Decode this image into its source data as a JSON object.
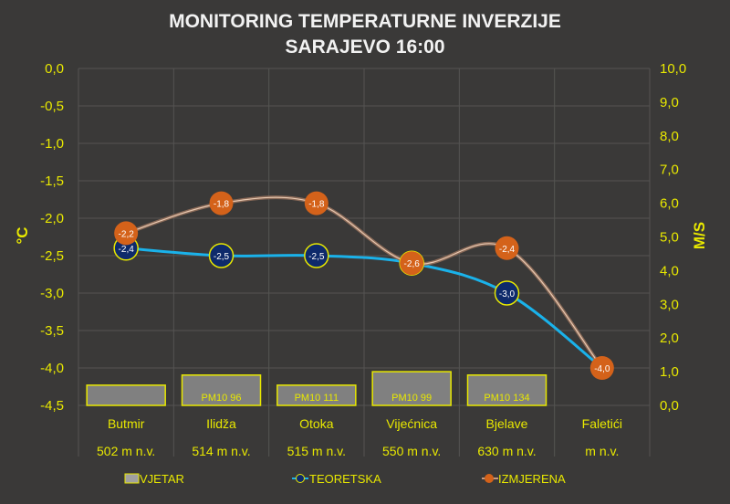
{
  "chart_data": {
    "type": "line+bar",
    "title": "MONITORING TEMPERATURNE INVERZIJE",
    "subtitle": "SARAJEVO 16:00",
    "categories": [
      "Butmir",
      "Ilidža",
      "Otoka",
      "Vijećnica",
      "Bjelave",
      "Faletići"
    ],
    "category_sublabels": [
      "502 m n.v.",
      "514 m n.v.",
      "515 m n.v.",
      "550 m n.v.",
      "630 m n.v.",
      "m n.v."
    ],
    "y_left": {
      "label": "°C",
      "range": [
        -4.5,
        0.0
      ],
      "ticks": [
        "0,0",
        "-0,5",
        "-1,0",
        "-1,5",
        "-2,0",
        "-2,5",
        "-3,0",
        "-3,5",
        "-4,0",
        "-4,5"
      ]
    },
    "y_right": {
      "label": "M/S",
      "range": [
        0.0,
        10.0
      ],
      "ticks": [
        "10,0",
        "9,0",
        "8,0",
        "7,0",
        "6,0",
        "5,0",
        "4,0",
        "3,0",
        "2,0",
        "1,0",
        "0,0"
      ]
    },
    "grid": true,
    "legend_position": "bottom",
    "series": [
      {
        "name": "VJETAR",
        "type": "bar",
        "axis": "right",
        "values": [
          0.6,
          0.9,
          0.6,
          1.0,
          0.9,
          null
        ],
        "labels": [
          "",
          "PM10 96",
          "PM10 111",
          "PM10 99",
          "PM10 134",
          ""
        ],
        "color": "#808080",
        "border": "#e8e800"
      },
      {
        "name": "TEORETSKA",
        "type": "line",
        "axis": "left",
        "values": [
          -2.4,
          -2.5,
          -2.5,
          -2.6,
          -3.0,
          -4.0
        ],
        "labels": [
          "-2,4",
          "-2,5",
          "-2,5",
          "-2,6",
          "-3,0",
          "-4,0"
        ],
        "color": "#1ab2ea",
        "marker_color": "#0e2a6b",
        "marker_border": "#e8e800"
      },
      {
        "name": "IZMJERENA",
        "type": "line",
        "axis": "left",
        "values": [
          -2.2,
          -1.8,
          -1.8,
          -2.6,
          -2.4,
          -4.0
        ],
        "labels": [
          "-2,2",
          "-1,8",
          "-1,8",
          "-2,6",
          "-2,4",
          "-4,0"
        ],
        "color": "#c89a80",
        "marker_color": "#d4621a"
      }
    ]
  }
}
